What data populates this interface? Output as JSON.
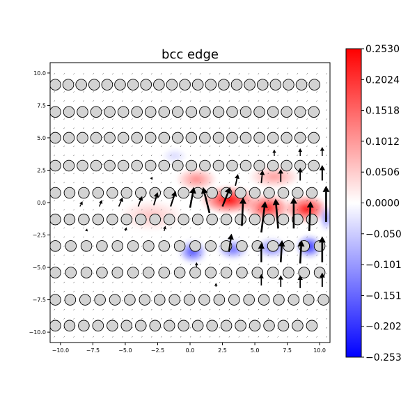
{
  "chart_data": {
    "type": "heatmap",
    "title": "bcc edge",
    "xlabel": "",
    "ylabel": "",
    "xlim": [
      -10.8,
      10.8
    ],
    "ylim": [
      -10.8,
      10.8
    ],
    "x_ticks": [
      "−10.0",
      "−7.5",
      "−5.0",
      "−2.5",
      "0.0",
      "2.5",
      "5.0",
      "7.5",
      "10.0"
    ],
    "y_ticks": [
      "−10.0",
      "−7.5",
      "−5.0",
      "−2.5",
      "0.0",
      "2.5",
      "5.0",
      "7.5",
      "10.0"
    ],
    "x_tick_values": [
      -10,
      -7.5,
      -5,
      -2.5,
      0,
      2.5,
      5,
      7.5,
      10
    ],
    "y_tick_values": [
      -10,
      -7.5,
      -5,
      -2.5,
      0,
      2.5,
      5,
      7.5,
      10
    ],
    "colormap": "bwr",
    "colorbar": {
      "vmin": -0.253,
      "vmax": 0.253,
      "tick_values": [
        0.253,
        0.2024,
        0.1518,
        0.1012,
        0.0506,
        0.0,
        -0.0506,
        -0.1012,
        -0.1518,
        -0.2024,
        -0.253
      ],
      "tick_labels": [
        "0.2530",
        "0.2024",
        "0.1518",
        "0.1012",
        "0.0506",
        "0.0000",
        "−0.050",
        "−0.101",
        "−0.151",
        "−0.202",
        "−0.253"
      ]
    },
    "field_blobs": [
      {
        "x": 3.0,
        "y": 0.2,
        "value": 0.25,
        "sx": 2.2,
        "sy": 1.1
      },
      {
        "x": 6.0,
        "y": -0.4,
        "value": 0.22,
        "sx": 1.8,
        "sy": 1.1
      },
      {
        "x": 9.0,
        "y": -0.5,
        "value": 0.24,
        "sx": 1.7,
        "sy": 1.1
      },
      {
        "x": 0.5,
        "y": 1.8,
        "value": 0.12,
        "sx": 1.6,
        "sy": 0.9
      },
      {
        "x": 6.5,
        "y": 2.0,
        "value": 0.1,
        "sx": 2.0,
        "sy": 0.9
      },
      {
        "x": -3.0,
        "y": -1.0,
        "value": 0.06,
        "sx": 2.5,
        "sy": 1.2
      },
      {
        "x": 0.2,
        "y": -3.8,
        "value": -0.18,
        "sx": 1.1,
        "sy": 0.9
      },
      {
        "x": 3.3,
        "y": -3.6,
        "value": -0.15,
        "sx": 1.2,
        "sy": 0.8
      },
      {
        "x": 6.3,
        "y": -3.5,
        "value": -0.14,
        "sx": 1.2,
        "sy": 0.8
      },
      {
        "x": 9.2,
        "y": -3.4,
        "value": -0.22,
        "sx": 1.0,
        "sy": 0.9
      },
      {
        "x": 10.5,
        "y": -1.2,
        "value": -0.12,
        "sx": 0.5,
        "sy": 1.0
      },
      {
        "x": -1.2,
        "y": 3.6,
        "value": -0.04,
        "sx": 1.0,
        "sy": 0.6
      }
    ],
    "atom_rows": [
      {
        "y": 9.1,
        "x_start": -10.4,
        "x_end": 10.4,
        "spacing": 1.0
      },
      {
        "y": 7.0,
        "x_start": -10.4,
        "x_end": 10.4,
        "spacing": 1.05
      },
      {
        "y": 5.0,
        "x_start": -10.4,
        "x_end": 10.4,
        "spacing": 1.05
      },
      {
        "y": 2.85,
        "x_start": -10.4,
        "x_end": 10.4,
        "spacing": 1.05
      },
      {
        "y": 0.75,
        "x_start": -10.4,
        "x_end": 10.4,
        "spacing": 1.1
      },
      {
        "y": -1.3,
        "x_start": -10.4,
        "x_end": 10.4,
        "spacing": 1.1
      },
      {
        "y": -3.35,
        "x_start": -10.4,
        "x_end": 10.4,
        "spacing": 1.2
      },
      {
        "y": -5.4,
        "x_start": -10.4,
        "x_end": 10.4,
        "spacing": 1.2
      },
      {
        "y": -7.5,
        "x_start": -10.4,
        "x_end": 10.4,
        "spacing": 1.15
      },
      {
        "y": -9.5,
        "x_start": -10.4,
        "x_end": 10.4,
        "spacing": 1.1
      }
    ],
    "displacement_arrows": [
      {
        "x": -8.5,
        "y": -0.3,
        "dx": 0.2,
        "dy": 0.4
      },
      {
        "x": -7.0,
        "y": -0.3,
        "dx": 0.2,
        "dy": 0.5
      },
      {
        "x": -5.5,
        "y": -0.3,
        "dx": 0.3,
        "dy": 0.7
      },
      {
        "x": -4.0,
        "y": -0.3,
        "dx": 0.3,
        "dy": 0.8
      },
      {
        "x": -2.8,
        "y": -0.2,
        "dx": 0.3,
        "dy": 1.0
      },
      {
        "x": -1.5,
        "y": -0.3,
        "dx": 0.4,
        "dy": 1.2
      },
      {
        "x": 0.0,
        "y": -0.4,
        "dx": 0.3,
        "dy": 1.6
      },
      {
        "x": 1.5,
        "y": -0.8,
        "dx": -0.5,
        "dy": 2.0
      },
      {
        "x": 2.5,
        "y": -0.3,
        "dx": 0.6,
        "dy": 1.5
      },
      {
        "x": 4.0,
        "y": -1.8,
        "dx": 0.1,
        "dy": 2.2
      },
      {
        "x": 5.5,
        "y": -2.3,
        "dx": 0.3,
        "dy": 2.4
      },
      {
        "x": 6.8,
        "y": -2.0,
        "dx": -0.2,
        "dy": 2.3
      },
      {
        "x": 8.0,
        "y": -2.0,
        "dx": 0.0,
        "dy": 2.4
      },
      {
        "x": 9.2,
        "y": -2.2,
        "dx": 0.1,
        "dy": 2.3
      },
      {
        "x": 10.5,
        "y": -1.5,
        "dx": 0.0,
        "dy": 2.8
      },
      {
        "x": 3.0,
        "y": -3.8,
        "dx": 0.2,
        "dy": 1.4
      },
      {
        "x": 5.5,
        "y": -4.6,
        "dx": 0.0,
        "dy": 1.5
      },
      {
        "x": 7.0,
        "y": -4.6,
        "dx": 0.1,
        "dy": 1.7
      },
      {
        "x": 8.5,
        "y": -4.7,
        "dx": 0.1,
        "dy": 1.8
      },
      {
        "x": 10.2,
        "y": -4.6,
        "dx": 0.0,
        "dy": 2.0
      },
      {
        "x": 5.5,
        "y": -6.4,
        "dx": 0.0,
        "dy": 0.9
      },
      {
        "x": 7.0,
        "y": -6.5,
        "dx": 0.0,
        "dy": 0.9
      },
      {
        "x": 8.5,
        "y": -6.6,
        "dx": 0.0,
        "dy": 1.0
      },
      {
        "x": 10.2,
        "y": -6.5,
        "dx": 0.0,
        "dy": 1.1
      },
      {
        "x": 3.5,
        "y": 1.3,
        "dx": 0.2,
        "dy": 0.9
      },
      {
        "x": 5.5,
        "y": 1.5,
        "dx": 0.1,
        "dy": 1.0
      },
      {
        "x": 7.0,
        "y": 1.6,
        "dx": 0.0,
        "dy": 1.0
      },
      {
        "x": 8.5,
        "y": 1.7,
        "dx": 0.0,
        "dy": 1.0
      },
      {
        "x": 10.2,
        "y": 1.7,
        "dx": 0.0,
        "dy": 1.2
      },
      {
        "x": 6.5,
        "y": 3.6,
        "dx": 0.0,
        "dy": 0.5
      },
      {
        "x": 8.5,
        "y": 3.6,
        "dx": 0.0,
        "dy": 0.6
      },
      {
        "x": 10.2,
        "y": 3.6,
        "dx": 0.0,
        "dy": 0.7
      },
      {
        "x": -2.0,
        "y": -2.2,
        "dx": 0.1,
        "dy": 0.4
      },
      {
        "x": -5.0,
        "y": -2.2,
        "dx": 0.1,
        "dy": 0.3
      },
      {
        "x": -8.0,
        "y": -2.2,
        "dx": 0.05,
        "dy": 0.2
      },
      {
        "x": -3.0,
        "y": 1.8,
        "dx": 0.1,
        "dy": 0.2
      },
      {
        "x": 0.5,
        "y": -5.0,
        "dx": 0.0,
        "dy": 0.4
      },
      {
        "x": 2.0,
        "y": -6.5,
        "dx": 0.0,
        "dy": 0.3
      }
    ]
  }
}
